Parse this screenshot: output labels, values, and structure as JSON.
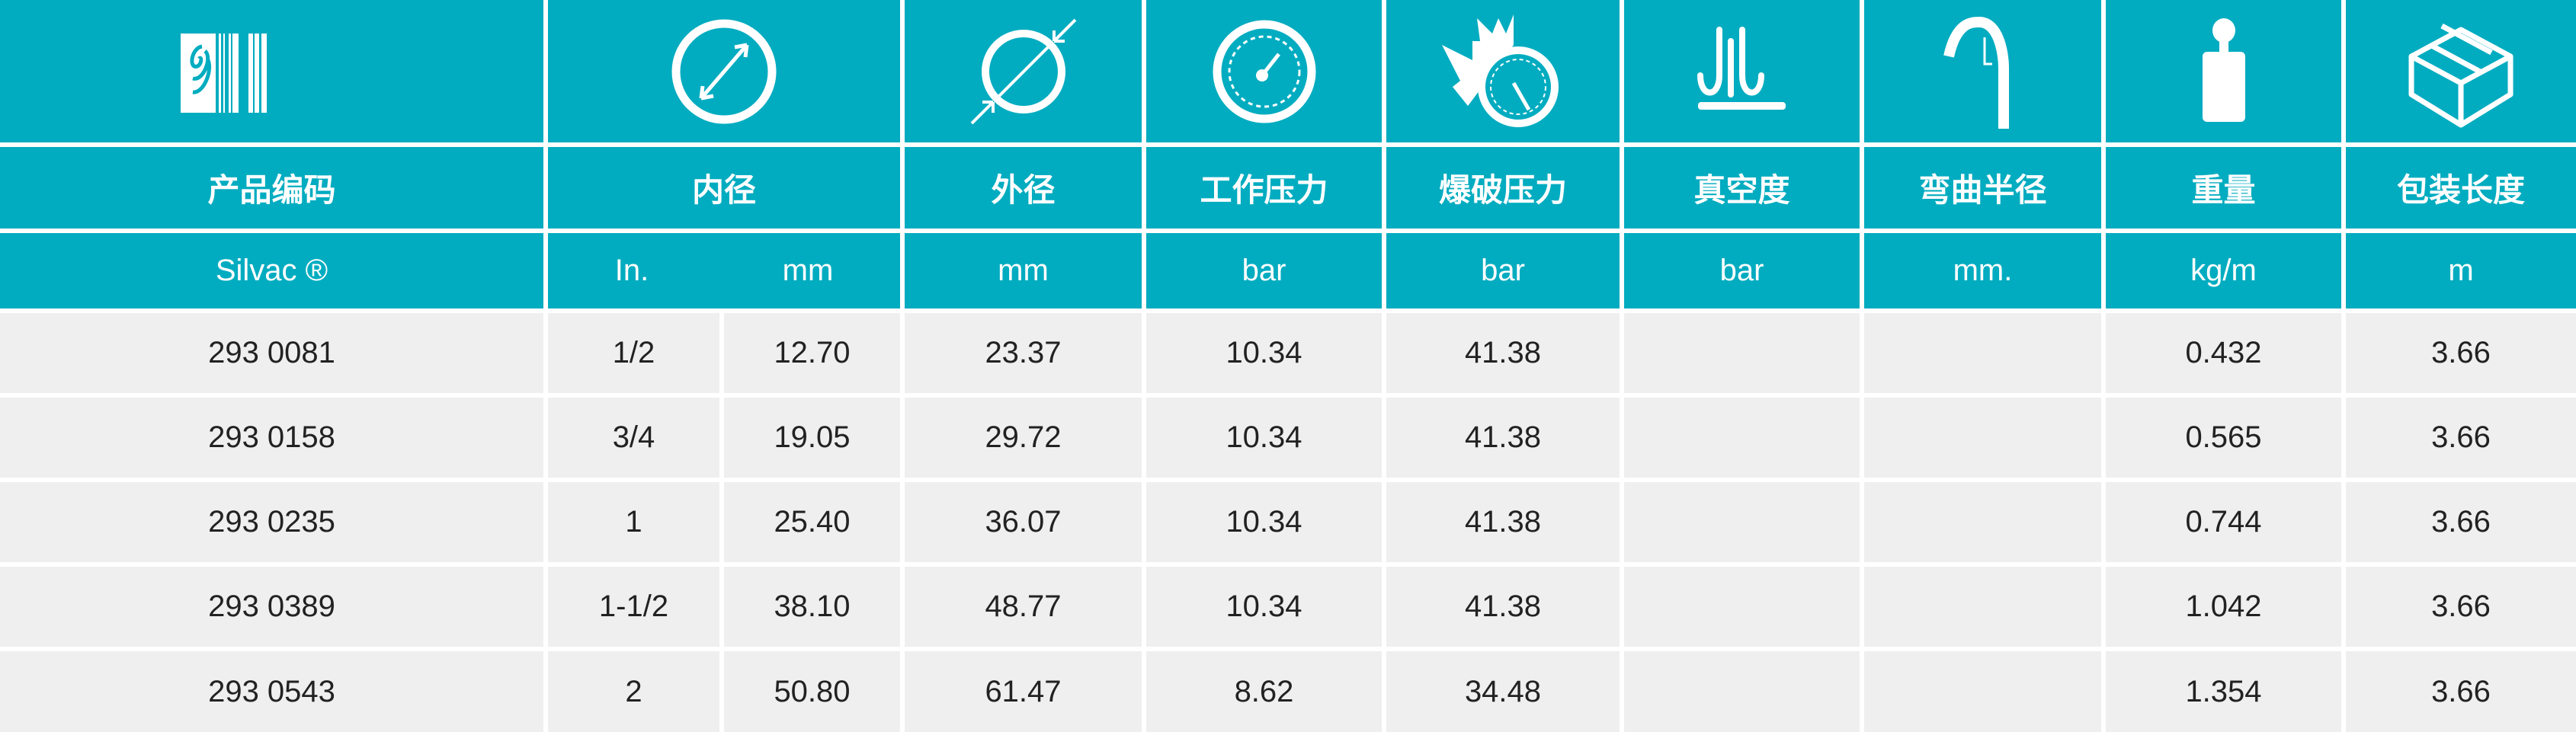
{
  "colors": {
    "header_bg": "#02acc0",
    "row_bg": "#efefef",
    "text_light": "#ffffff",
    "text_dark": "#222222"
  },
  "icons": [
    "barcode-logo-icon",
    "inner-diameter-icon",
    "outer-diameter-icon",
    "pressure-gauge-icon",
    "burst-pressure-icon",
    "vacuum-icon",
    "bend-radius-icon",
    "weight-icon",
    "package-box-icon"
  ],
  "headers": [
    "产品编码",
    "内径",
    "外径",
    "工作压力",
    "爆破压力",
    "真空度",
    "弯曲半径",
    "重量",
    "包装长度"
  ],
  "units": {
    "code": "Silvac ®",
    "id_in": "In.",
    "id_mm": "mm",
    "od": "mm",
    "wp": "bar",
    "bp": "bar",
    "vac": "bar",
    "bend": "mm.",
    "weight": "kg/m",
    "length": "m"
  },
  "rows": [
    {
      "code": "293 0081",
      "in": "1/2",
      "mm": "12.70",
      "od": "23.37",
      "wp": "10.34",
      "bp": "41.38",
      "vac": "",
      "bend": "",
      "weight": "0.432",
      "length": "3.66"
    },
    {
      "code": "293 0158",
      "in": "3/4",
      "mm": "19.05",
      "od": "29.72",
      "wp": "10.34",
      "bp": "41.38",
      "vac": "",
      "bend": "",
      "weight": "0.565",
      "length": "3.66"
    },
    {
      "code": "293 0235",
      "in": "1",
      "mm": "25.40",
      "od": "36.07",
      "wp": "10.34",
      "bp": "41.38",
      "vac": "",
      "bend": "",
      "weight": "0.744",
      "length": "3.66"
    },
    {
      "code": "293 0389",
      "in": "1-1/2",
      "mm": "38.10",
      "od": "48.77",
      "wp": "10.34",
      "bp": "41.38",
      "vac": "",
      "bend": "",
      "weight": "1.042",
      "length": "3.66"
    },
    {
      "code": "293 0543",
      "in": "2",
      "mm": "50.80",
      "od": "61.47",
      "wp": "8.62",
      "bp": "34.48",
      "vac": "",
      "bend": "",
      "weight": "1.354",
      "length": "3.66"
    }
  ]
}
